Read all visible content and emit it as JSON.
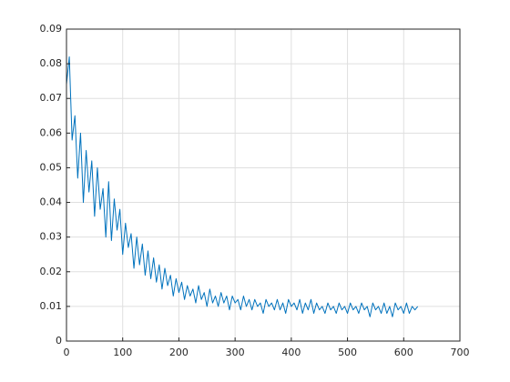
{
  "chart_data": {
    "type": "line",
    "x": [
      0,
      5,
      10,
      15,
      20,
      25,
      30,
      35,
      40,
      45,
      50,
      55,
      60,
      65,
      70,
      75,
      80,
      85,
      90,
      95,
      100,
      105,
      110,
      115,
      120,
      125,
      130,
      135,
      140,
      145,
      150,
      155,
      160,
      165,
      170,
      175,
      180,
      185,
      190,
      195,
      200,
      205,
      210,
      215,
      220,
      225,
      230,
      235,
      240,
      245,
      250,
      255,
      260,
      265,
      270,
      275,
      280,
      285,
      290,
      295,
      300,
      305,
      310,
      315,
      320,
      325,
      330,
      335,
      340,
      345,
      350,
      355,
      360,
      365,
      370,
      375,
      380,
      385,
      390,
      395,
      400,
      405,
      410,
      415,
      420,
      425,
      430,
      435,
      440,
      445,
      450,
      455,
      460,
      465,
      470,
      475,
      480,
      485,
      490,
      495,
      500,
      505,
      510,
      515,
      520,
      525,
      530,
      535,
      540,
      545,
      550,
      555,
      560,
      565,
      570,
      575,
      580,
      585,
      590,
      595,
      600,
      605,
      610,
      615,
      620,
      625
    ],
    "series": [
      {
        "color": "#0072bd",
        "values": [
          0.074,
          0.082,
          0.058,
          0.065,
          0.047,
          0.06,
          0.04,
          0.055,
          0.043,
          0.052,
          0.036,
          0.05,
          0.038,
          0.044,
          0.03,
          0.046,
          0.029,
          0.041,
          0.032,
          0.038,
          0.025,
          0.034,
          0.027,
          0.031,
          0.021,
          0.03,
          0.022,
          0.028,
          0.019,
          0.026,
          0.018,
          0.024,
          0.017,
          0.022,
          0.015,
          0.021,
          0.016,
          0.019,
          0.013,
          0.018,
          0.014,
          0.017,
          0.012,
          0.016,
          0.013,
          0.015,
          0.011,
          0.016,
          0.012,
          0.014,
          0.01,
          0.015,
          0.011,
          0.013,
          0.01,
          0.014,
          0.011,
          0.013,
          0.009,
          0.013,
          0.011,
          0.012,
          0.009,
          0.013,
          0.01,
          0.012,
          0.009,
          0.012,
          0.01,
          0.011,
          0.008,
          0.012,
          0.01,
          0.011,
          0.009,
          0.012,
          0.009,
          0.011,
          0.008,
          0.012,
          0.01,
          0.011,
          0.009,
          0.012,
          0.008,
          0.011,
          0.009,
          0.012,
          0.008,
          0.011,
          0.009,
          0.01,
          0.008,
          0.011,
          0.009,
          0.01,
          0.008,
          0.011,
          0.009,
          0.01,
          0.008,
          0.011,
          0.009,
          0.01,
          0.008,
          0.011,
          0.009,
          0.01,
          0.007,
          0.011,
          0.009,
          0.01,
          0.008,
          0.011,
          0.008,
          0.01,
          0.007,
          0.011,
          0.009,
          0.01,
          0.008,
          0.011,
          0.008,
          0.01,
          0.009,
          0.01
        ]
      }
    ],
    "xlim": [
      0,
      700
    ],
    "xticks": [
      0,
      100,
      200,
      300,
      400,
      500,
      600,
      700
    ],
    "ylim": [
      0,
      0.09
    ],
    "yticks": [
      0,
      0.01,
      0.02,
      0.03,
      0.04,
      0.05,
      0.06,
      0.07,
      0.08,
      0.09
    ],
    "grid": true
  }
}
